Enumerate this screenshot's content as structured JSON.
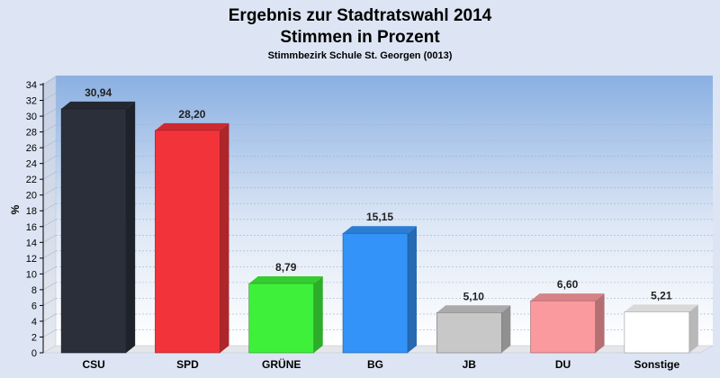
{
  "chart_data": {
    "type": "bar",
    "title": "Ergebnis zur Stadtratswahl 2014",
    "title_line2": "Stimmen in Prozent",
    "subtitle": "Stimmbezirk Schule St. Georgen (0013)",
    "ylabel": "%",
    "xlabel": "",
    "ylim": [
      0,
      34
    ],
    "y_ticks": [
      0,
      2,
      4,
      6,
      8,
      10,
      12,
      14,
      16,
      18,
      20,
      22,
      24,
      26,
      28,
      30,
      32,
      34
    ],
    "grid": true,
    "categories": [
      "CSU",
      "SPD",
      "GRÜNE",
      "BG",
      "JB",
      "DU",
      "Sonstige"
    ],
    "values": [
      30.94,
      28.2,
      8.79,
      15.15,
      5.1,
      6.6,
      5.21
    ],
    "value_labels": [
      "30,94",
      "28,20",
      "8,79",
      "15,15",
      "5,10",
      "6,60",
      "5,21"
    ],
    "colors": [
      "#2a2f3a",
      "#f2333a",
      "#3ef03a",
      "#3393f8",
      "#c8c8c8",
      "#fa9a9e",
      "#ffffff"
    ]
  }
}
